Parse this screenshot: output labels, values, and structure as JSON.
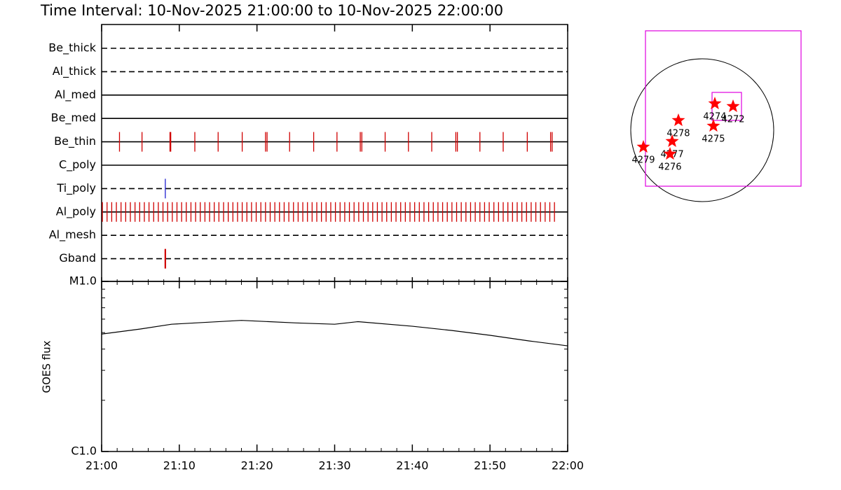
{
  "chart_data": [
    {
      "type": "timeline",
      "title": "Time Interval: 10-Nov-2025 21:00:00 to 10-Nov-2025 22:00:00",
      "xlim": [
        0,
        60
      ],
      "rows": [
        {
          "name": "Be_thick",
          "style": "dashed",
          "color": "#d00000",
          "times": []
        },
        {
          "name": "Al_thick",
          "style": "dashed",
          "color": "#d00000",
          "times": []
        },
        {
          "name": "Al_med",
          "style": "solid",
          "color": "#d00000",
          "times": []
        },
        {
          "name": "Be_med",
          "style": "solid",
          "color": "#d00000",
          "times": []
        },
        {
          "name": "Be_thin",
          "style": "solid",
          "color": "#d00000",
          "times": [
            2.3,
            5.2,
            8.8,
            8.9,
            12.0,
            15.0,
            18.1,
            21.1,
            21.3,
            24.2,
            27.3,
            30.3,
            33.3,
            33.5,
            36.5,
            39.5,
            42.5,
            45.6,
            45.8,
            48.7,
            51.7,
            54.8,
            57.8,
            58.0
          ]
        },
        {
          "name": "C_poly",
          "style": "solid",
          "color": "#d00000",
          "times": []
        },
        {
          "name": "Ti_poly",
          "style": "dashed",
          "color": "#2020d0",
          "times": [
            8.2
          ]
        },
        {
          "name": "Al_poly",
          "style": "solid",
          "color": "#d00000",
          "times": [
            0.1,
            0.7,
            1.3,
            1.9,
            2.5,
            3.1,
            3.7,
            4.3,
            4.9,
            5.5,
            6.1,
            6.7,
            7.3,
            7.9,
            8.5,
            9.1,
            9.7,
            10.3,
            10.9,
            11.5,
            12.1,
            12.7,
            13.3,
            13.9,
            14.5,
            15.1,
            15.7,
            16.3,
            16.9,
            17.5,
            18.1,
            18.7,
            19.3,
            19.9,
            20.5,
            21.1,
            21.7,
            22.3,
            22.9,
            23.5,
            24.1,
            24.7,
            25.3,
            25.9,
            26.5,
            27.1,
            27.7,
            28.3,
            28.9,
            29.5,
            30.1,
            30.7,
            31.3,
            31.9,
            32.5,
            33.1,
            33.7,
            34.3,
            34.9,
            35.5,
            36.1,
            36.7,
            37.3,
            37.9,
            38.5,
            39.1,
            39.7,
            40.3,
            40.9,
            41.5,
            42.1,
            42.7,
            43.3,
            43.9,
            44.5,
            45.1,
            45.7,
            46.3,
            46.9,
            47.5,
            48.1,
            48.7,
            49.3,
            49.9,
            50.5,
            51.1,
            51.7,
            52.3,
            52.9,
            53.5,
            54.1,
            54.7,
            55.3,
            55.9,
            56.5,
            57.1,
            57.7,
            58.3
          ]
        },
        {
          "name": "Al_mesh",
          "style": "dashed",
          "color": "#d00000",
          "times": []
        },
        {
          "name": "Gband",
          "style": "dashed",
          "color": "#d00000",
          "times": [
            8.2
          ]
        }
      ]
    },
    {
      "type": "line",
      "ylabel": "GOES flux",
      "log": true,
      "color": "#000000",
      "x": [
        0,
        5,
        9,
        18,
        25,
        30,
        33,
        40,
        45,
        50,
        55,
        60
      ],
      "values": [
        4.9e-06,
        5.25e-06,
        5.6e-06,
        5.9e-06,
        5.7e-06,
        5.6e-06,
        5.8e-06,
        5.45e-06,
        5.15e-06,
        4.82e-06,
        4.47e-06,
        4.18e-06
      ],
      "xlim": [
        0,
        60
      ],
      "xticks": [
        {
          "value": 0,
          "label": "21:00"
        },
        {
          "value": 10,
          "label": "21:10"
        },
        {
          "value": 20,
          "label": "21:20"
        },
        {
          "value": 30,
          "label": "21:30"
        },
        {
          "value": 40,
          "label": "21:40"
        },
        {
          "value": 50,
          "label": "21:50"
        },
        {
          "value": 60,
          "label": "22:00"
        }
      ],
      "ylim": [
        1e-06,
        1e-05
      ],
      "yticks": [
        {
          "value": 1e-06,
          "label": "C1.0"
        },
        {
          "value": 1e-05,
          "label": "M1.0"
        }
      ]
    },
    {
      "type": "scatter",
      "color": "#ff0000",
      "points": [
        {
          "label": "4274",
          "x": 169,
          "y": 357
        },
        {
          "label": "4272",
          "x": 414,
          "y": 320
        },
        {
          "label": "4278",
          "x": -320,
          "y": 132
        },
        {
          "label": "4275",
          "x": 150,
          "y": 56
        },
        {
          "label": "4277",
          "x": -404,
          "y": -150
        },
        {
          "label": "4276",
          "x": -433,
          "y": -320
        },
        {
          "label": "4279",
          "x": -790,
          "y": -226
        }
      ]
    }
  ]
}
